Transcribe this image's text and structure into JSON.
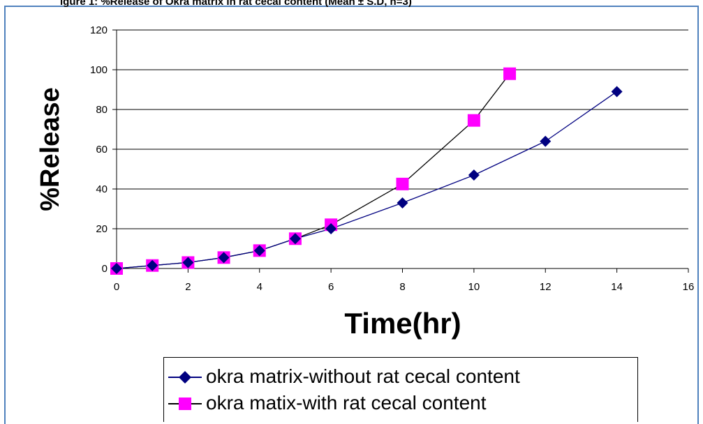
{
  "caption": "igure 1: %Release of Okra matrix in rat cecal content (Mean ± S.D, n=3)",
  "chart_data": {
    "type": "line",
    "xlabel": "Time(hr)",
    "ylabel": "%Release",
    "xlim": [
      0,
      16
    ],
    "ylim": [
      0,
      120
    ],
    "x_ticks": [
      0,
      2,
      4,
      6,
      8,
      10,
      12,
      14,
      16
    ],
    "y_ticks": [
      0,
      20,
      40,
      60,
      80,
      100,
      120
    ],
    "grid": "horizontal",
    "legend_position": "bottom",
    "series": [
      {
        "name": "okra matrix-without rat cecal content",
        "marker": "diamond",
        "marker_color": "#000080",
        "line_color": "#000080",
        "x": [
          0,
          1,
          2,
          3,
          4,
          5,
          6,
          8,
          10,
          12,
          14
        ],
        "y": [
          0,
          1.5,
          3,
          5.5,
          9,
          15,
          20,
          33,
          47,
          64,
          89
        ]
      },
      {
        "name": "okra matix-with rat cecal content",
        "marker": "square",
        "marker_color": "#ff00ff",
        "line_color": "#000000",
        "x": [
          0,
          1,
          2,
          3,
          4,
          5,
          6,
          8,
          10,
          11
        ],
        "y": [
          0,
          1.5,
          3,
          5.5,
          9,
          15,
          22,
          42.5,
          74.5,
          98
        ]
      }
    ]
  }
}
